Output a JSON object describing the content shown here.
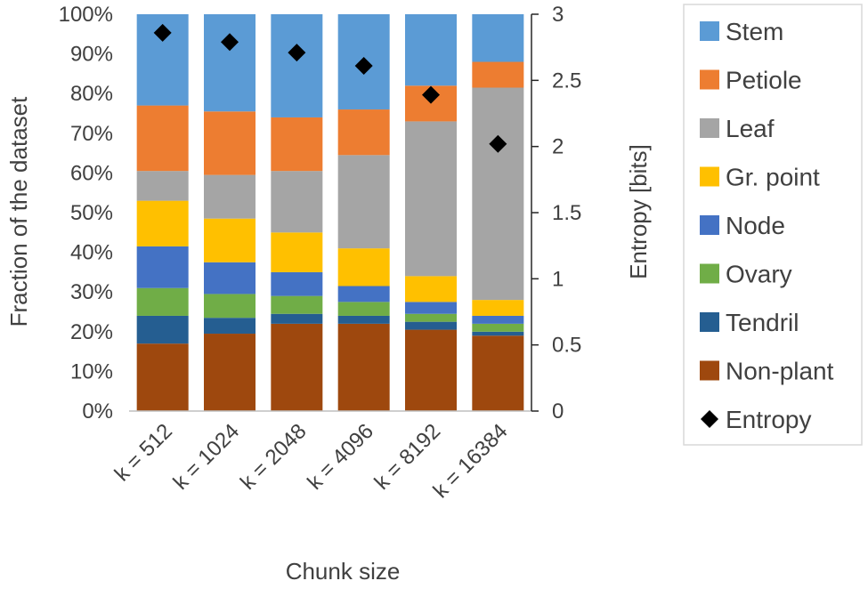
{
  "chart_data": {
    "type": "bar",
    "stacked": true,
    "categories": [
      "k = 512",
      "k = 1024",
      "k = 2048",
      "k = 4096",
      "k = 8192",
      "k = 16384"
    ],
    "series": [
      {
        "name": "Non-plant",
        "color": "#9E480E",
        "values": [
          17,
          19.5,
          22,
          22,
          20.5,
          19
        ]
      },
      {
        "name": "Tendril",
        "color": "#255E91",
        "values": [
          7,
          4,
          2.5,
          2,
          2,
          1
        ]
      },
      {
        "name": "Ovary",
        "color": "#70AD47",
        "values": [
          7,
          6,
          4.5,
          3.5,
          2,
          2
        ]
      },
      {
        "name": "Node",
        "color": "#4472C4",
        "values": [
          10.5,
          8,
          6,
          4,
          3,
          2
        ]
      },
      {
        "name": "Gr. point",
        "color": "#FFC000",
        "values": [
          11.5,
          11,
          10,
          9.5,
          6.5,
          4
        ]
      },
      {
        "name": "Leaf",
        "color": "#A5A5A5",
        "values": [
          7.5,
          11,
          15.5,
          23.5,
          39,
          53.5
        ]
      },
      {
        "name": "Petiole",
        "color": "#ED7D31",
        "values": [
          16.5,
          16,
          13.5,
          11.5,
          9,
          6.5
        ]
      },
      {
        "name": "Stem",
        "color": "#5B9BD5",
        "values": [
          23,
          24.5,
          26,
          24,
          18,
          12
        ]
      }
    ],
    "entropy": {
      "name": "Entropy",
      "color": "#000000",
      "values": [
        2.86,
        2.79,
        2.71,
        2.61,
        2.39,
        2.02
      ]
    },
    "ylabel": "Fraction of the dataset",
    "y2label": "Entropy [bits]",
    "xlabel": "Chunk size",
    "y_ticks": [
      "0%",
      "10%",
      "20%",
      "30%",
      "40%",
      "50%",
      "60%",
      "70%",
      "80%",
      "90%",
      "100%"
    ],
    "y2_ticks": [
      "0",
      "0.5",
      "1",
      "1.5",
      "2",
      "2.5",
      "3"
    ],
    "ylim": [
      0,
      100
    ],
    "y2lim": [
      0,
      3
    ],
    "legend_position": "right",
    "legend_order": [
      "Stem",
      "Petiole",
      "Leaf",
      "Gr. point",
      "Node",
      "Ovary",
      "Tendril",
      "Non-plant",
      "Entropy"
    ]
  }
}
